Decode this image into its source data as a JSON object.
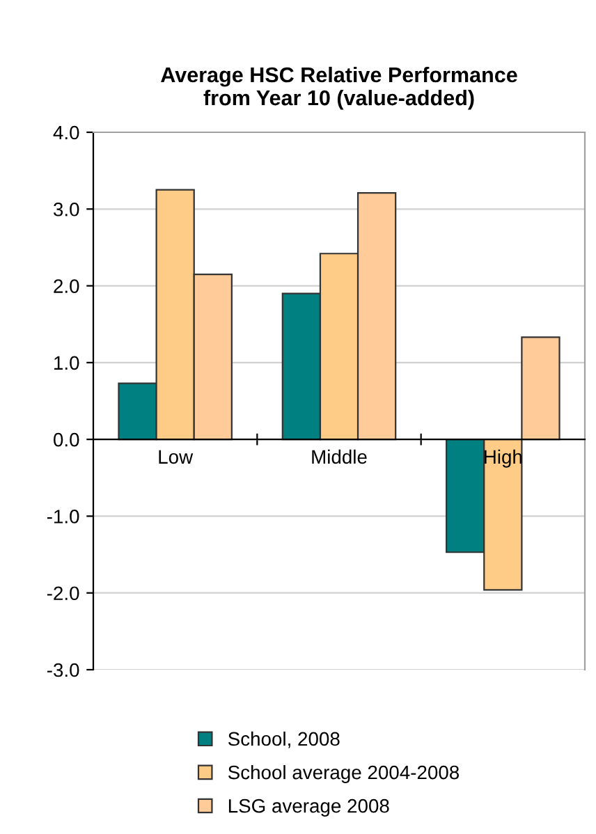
{
  "chart_data": {
    "type": "bar",
    "title": "Average HSC Relative Performance\nfrom Year 10 (value-added)",
    "categories": [
      "Low",
      "Middle",
      "High"
    ],
    "series": [
      {
        "name": "School, 2008",
        "color": "#008080",
        "values": [
          0.73,
          1.9,
          -1.47
        ]
      },
      {
        "name": "School average 2004-2008",
        "color": "#ffcc88",
        "values": [
          3.25,
          2.42,
          -1.96
        ]
      },
      {
        "name": "LSG average 2008",
        "color": "#ffcc99",
        "values": [
          2.15,
          3.21,
          1.33
        ]
      }
    ],
    "ylim": [
      -3.0,
      4.0
    ],
    "yticks": [
      {
        "value": -3,
        "label": "-3.0"
      },
      {
        "value": -2,
        "label": "-2.0"
      },
      {
        "value": -1,
        "label": "-1.0"
      },
      {
        "value": 0,
        "label": "0.0"
      },
      {
        "value": 1,
        "label": "1.0"
      },
      {
        "value": 2,
        "label": "2.0"
      },
      {
        "value": 3,
        "label": "3.0"
      },
      {
        "value": 4,
        "label": "4.0"
      }
    ],
    "grid": "y",
    "legend": "bottom"
  }
}
